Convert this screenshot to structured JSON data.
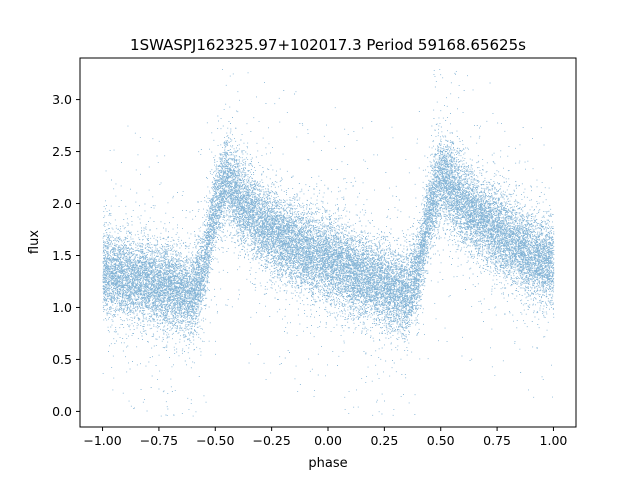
{
  "chart_data": {
    "type": "scatter",
    "title": "1SWASPJ162325.97+102017.3 Period 59168.65625s",
    "xlabel": "phase",
    "ylabel": "flux",
    "xlim": [
      -1.1,
      1.1
    ],
    "ylim": [
      -0.15,
      3.4
    ],
    "xticks": [
      -1.0,
      -0.75,
      -0.5,
      -0.25,
      0.0,
      0.25,
      0.5,
      0.75,
      1.0
    ],
    "xtick_labels": [
      "−1.00",
      "−0.75",
      "−0.50",
      "−0.25",
      "0.00",
      "0.25",
      "0.50",
      "0.75",
      "1.00"
    ],
    "yticks": [
      0.0,
      0.5,
      1.0,
      1.5,
      2.0,
      2.5,
      3.0
    ],
    "ytick_labels": [
      "0.0",
      "0.5",
      "1.0",
      "1.5",
      "2.0",
      "2.5",
      "3.0"
    ],
    "grid": false,
    "legend": "none",
    "point_color": "#1f77b4",
    "series": [
      {
        "profile_phase": [
          -1.0,
          -0.9,
          -0.8,
          -0.7,
          -0.6,
          -0.55,
          -0.5,
          -0.45,
          -0.4,
          -0.3,
          -0.2,
          -0.1,
          0.0,
          0.1,
          0.2,
          0.3,
          0.35,
          0.4,
          0.45,
          0.5,
          0.55,
          0.6,
          0.7,
          0.8,
          0.9,
          1.0
        ],
        "profile_flux": [
          1.35,
          1.3,
          1.25,
          1.18,
          1.12,
          1.4,
          2.0,
          2.25,
          2.05,
          1.8,
          1.65,
          1.55,
          1.45,
          1.35,
          1.25,
          1.15,
          1.12,
          1.35,
          1.95,
          2.25,
          2.15,
          2.0,
          1.8,
          1.65,
          1.5,
          1.4
        ],
        "typical_scatter": 0.2,
        "approx_points": 30000
      }
    ]
  }
}
